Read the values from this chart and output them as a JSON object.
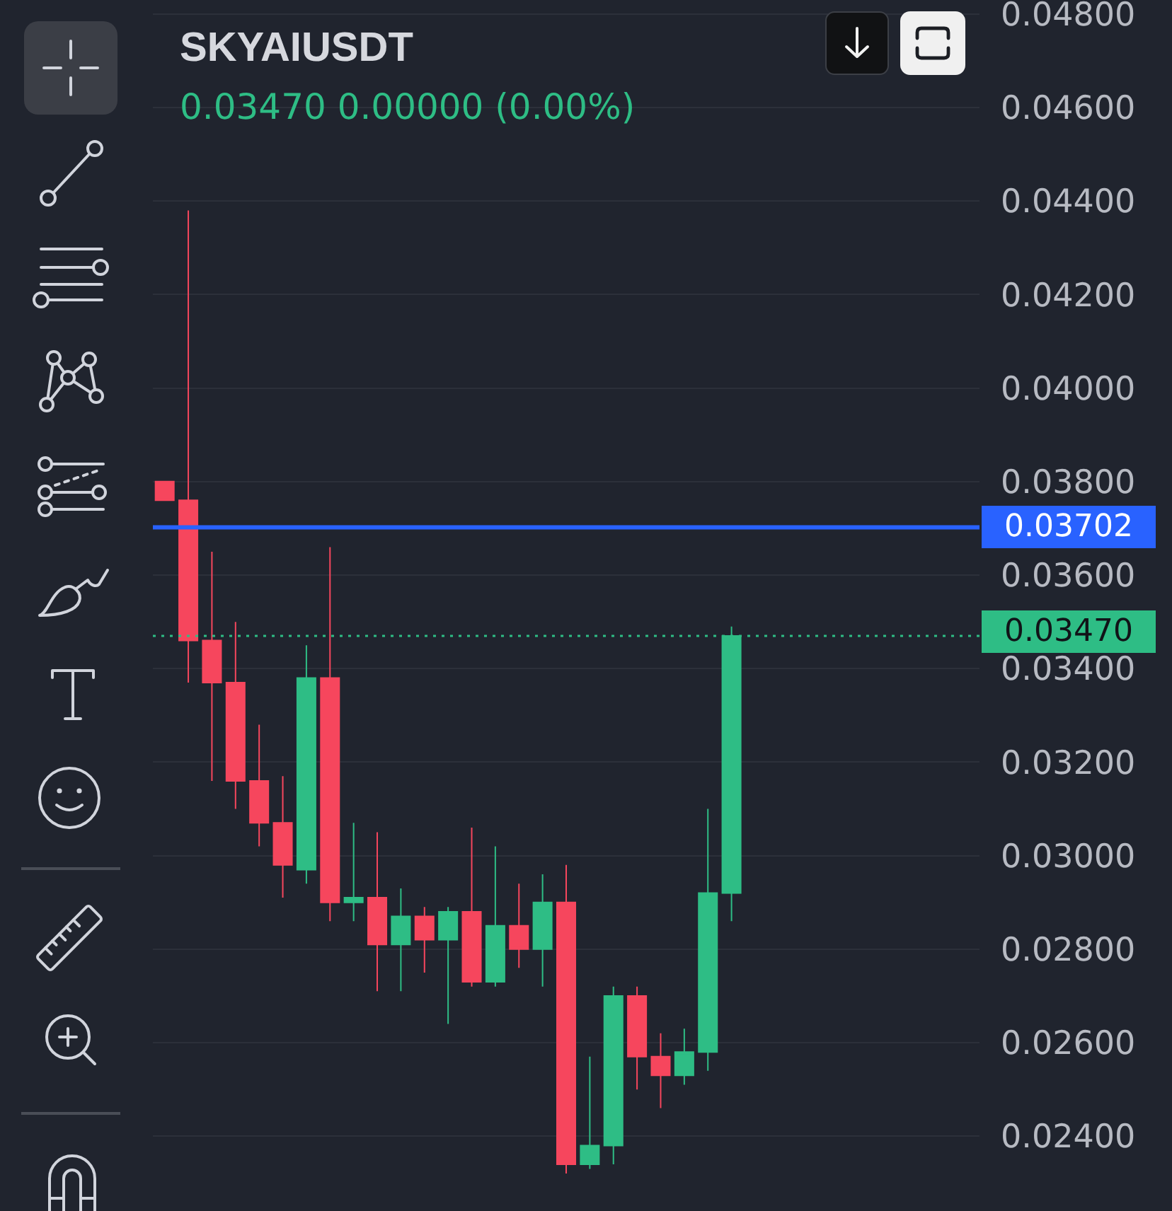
{
  "chart_data": {
    "type": "candlestick",
    "title": "SKYAIUSDT",
    "subtitle": "0.03470 0.00000 (0.00%)",
    "categories": [
      null,
      null,
      null,
      null,
      null,
      null,
      null,
      null,
      null,
      null,
      null,
      null,
      null,
      null,
      null,
      null,
      null,
      null,
      null,
      null,
      null,
      null,
      null,
      null,
      null,
      null,
      null,
      null,
      null,
      null,
      null,
      null,
      null,
      null,
      null
    ],
    "ohlc": [
      [
        0.038,
        0.038,
        0.0376,
        0.0376
      ],
      [
        0.0376,
        0.0438,
        0.0337,
        0.0346
      ],
      [
        0.0346,
        0.0365,
        0.0316,
        0.0337
      ],
      [
        0.0337,
        0.035,
        0.031,
        0.0316
      ],
      [
        0.0316,
        0.0328,
        0.0302,
        0.0307
      ],
      [
        0.0307,
        0.0317,
        0.0291,
        0.0298
      ],
      [
        0.0297,
        0.0345,
        0.0294,
        0.0338
      ],
      [
        0.0338,
        0.0366,
        0.0286,
        0.029
      ],
      [
        0.029,
        0.0307,
        0.0286,
        0.0291
      ],
      [
        0.0291,
        0.0305,
        0.0271,
        0.0281
      ],
      [
        0.0281,
        0.0293,
        0.0271,
        0.0287
      ],
      [
        0.0287,
        0.0289,
        0.0275,
        0.0282
      ],
      [
        0.0282,
        0.0289,
        0.0264,
        0.0288
      ],
      [
        0.0288,
        0.0306,
        0.0272,
        0.0273
      ],
      [
        0.0273,
        0.0302,
        0.0272,
        0.0285
      ],
      [
        0.0285,
        0.0294,
        0.0276,
        0.028
      ],
      [
        0.028,
        0.0296,
        0.0272,
        0.029
      ],
      [
        0.029,
        0.0298,
        0.0232,
        0.0234
      ],
      [
        0.0234,
        0.0257,
        0.0233,
        0.0238
      ],
      [
        0.0238,
        0.0272,
        0.0234,
        0.027
      ],
      [
        0.027,
        0.0272,
        0.025,
        0.0257
      ],
      [
        0.0257,
        0.0262,
        0.0246,
        0.0253
      ],
      [
        0.0253,
        0.0263,
        0.0251,
        0.0258
      ],
      [
        0.0258,
        0.031,
        0.0254,
        0.0292
      ],
      [
        0.0292,
        0.0349,
        0.0286,
        0.0347
      ],
      null,
      null,
      null,
      null,
      null,
      null,
      null,
      null,
      null,
      null
    ],
    "colors": [
      "#f6465d",
      "#f6465d",
      "#f6465d",
      "#f6465d",
      "#f6465d",
      "#f6465d",
      "#2ebd85",
      "#f6465d",
      "#2ebd85",
      "#f6465d",
      "#2ebd85",
      "#f6465d",
      "#2ebd85",
      "#f6465d",
      "#2ebd85",
      "#f6465d",
      "#2ebd85",
      "#f6465d",
      "#2ebd85",
      "#2ebd85",
      "#f6465d",
      "#f6465d",
      "#2ebd85",
      "#2ebd85",
      "#2ebd85",
      null,
      null,
      null,
      null,
      null,
      null,
      null,
      null,
      null,
      null
    ],
    "ylim": [
      0.0224,
      0.0483
    ],
    "yticks": [
      {
        "value": 0.024,
        "label": "0.02400"
      },
      {
        "value": 0.026,
        "label": "0.02600"
      },
      {
        "value": 0.028,
        "label": "0.02800"
      },
      {
        "value": 0.03,
        "label": "0.03000"
      },
      {
        "value": 0.032,
        "label": "0.03200"
      },
      {
        "value": 0.034,
        "label": "0.03400"
      },
      {
        "value": 0.036,
        "label": "0.03600"
      },
      {
        "value": 0.038,
        "label": "0.03800"
      },
      {
        "value": 0.04,
        "label": "0.04000"
      },
      {
        "value": 0.042,
        "label": "0.04200"
      },
      {
        "value": 0.044,
        "label": "0.04400"
      },
      {
        "value": 0.046,
        "label": "0.04600"
      },
      {
        "value": 0.048,
        "label": "0.04800"
      }
    ],
    "grid": "y",
    "tick_labels": "y",
    "ref_lines": [
      {
        "axis": "y",
        "value": 0.03702,
        "label": "0.03702",
        "color": "#2962ff",
        "line_style": "solid"
      },
      {
        "axis": "y",
        "value": 0.0347,
        "label": "0.03470",
        "color": "#2ebd85",
        "line_style": "dotted"
      }
    ]
  }
}
